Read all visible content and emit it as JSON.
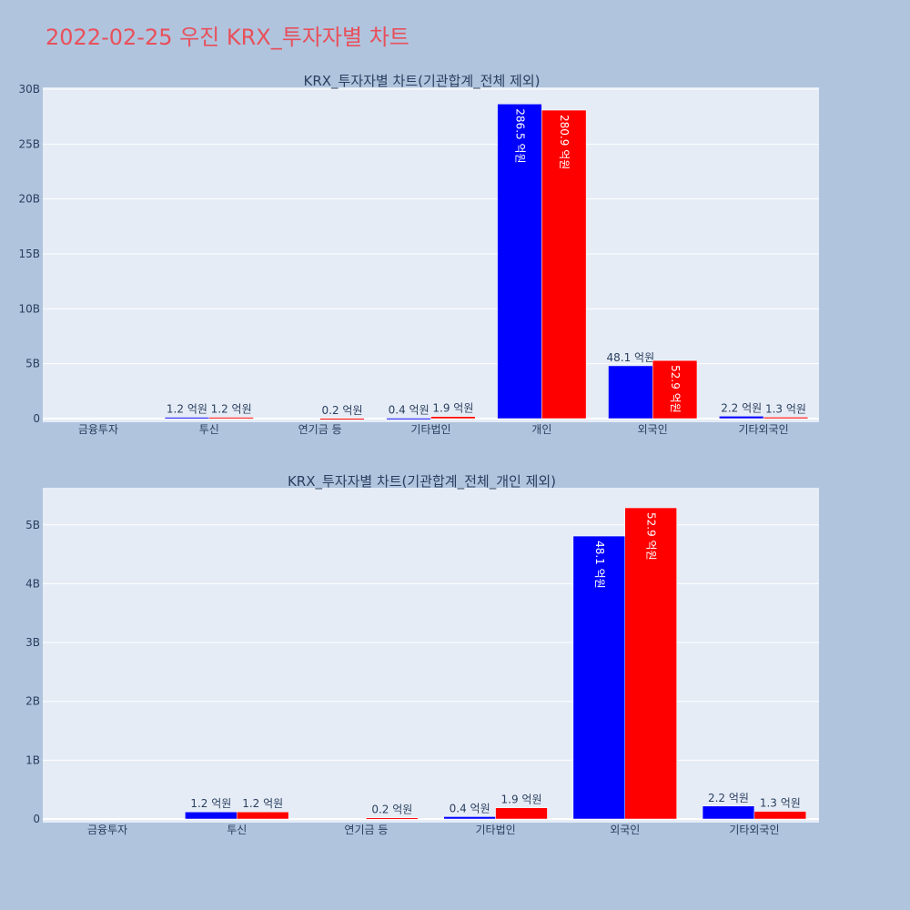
{
  "title": "2022-02-25 우진 KRX_투자자별 차트",
  "colors": {
    "buy": "#0000ff",
    "sell": "#ff0000",
    "plot_bg": "#e5ecf6",
    "page_bg": "#b0c4de",
    "title": "#e8505b"
  },
  "chart_data": [
    {
      "type": "bar",
      "title": "KRX_투자자별 차트(기관합계_전체 제외)",
      "categories": [
        "금융투자",
        "투신",
        "연기금 등",
        "기타법인",
        "개인",
        "외국인",
        "기타외국인"
      ],
      "series": [
        {
          "values": [
            0,
            0.12,
            0,
            0.04,
            28.65,
            4.81,
            0.22
          ],
          "labels": [
            "",
            "1.2 억원",
            "",
            "0.4 억원",
            "286.5 억원",
            "48.1 억원",
            "2.2 억원"
          ]
        },
        {
          "values": [
            0,
            0.12,
            0.02,
            0.19,
            28.09,
            5.29,
            0.13
          ],
          "labels": [
            "",
            "1.2 억원",
            "0.2 억원",
            "1.9 억원",
            "280.9 억원",
            "52.9 억원",
            "1.3 억원"
          ]
        }
      ],
      "ylim": [
        0,
        30
      ],
      "yticks": [
        0,
        5,
        10,
        15,
        20,
        25,
        30
      ],
      "ytick_labels": [
        "0",
        "5B",
        "10B",
        "15B",
        "20B",
        "25B",
        "30B"
      ],
      "grid": true,
      "legend": false
    },
    {
      "type": "bar",
      "title": "KRX_투자자별 차트(기관합계_전체_개인 제외)",
      "categories": [
        "금융투자",
        "투신",
        "연기금 등",
        "기타법인",
        "외국인",
        "기타외국인"
      ],
      "series": [
        {
          "values": [
            0,
            0.12,
            0,
            0.04,
            4.81,
            0.22
          ],
          "labels": [
            "",
            "1.2 억원",
            "",
            "0.4 억원",
            "48.1 억원",
            "2.2 억원"
          ]
        },
        {
          "values": [
            0,
            0.12,
            0.02,
            0.19,
            5.29,
            0.13
          ],
          "labels": [
            "",
            "1.2 억원",
            "0.2 억원",
            "1.9 억원",
            "52.9 억원",
            "1.3 억원"
          ]
        }
      ],
      "ylim": [
        0,
        5.6
      ],
      "yticks": [
        0,
        1,
        2,
        3,
        4,
        5
      ],
      "ytick_labels": [
        "0",
        "1B",
        "2B",
        "3B",
        "4B",
        "5B"
      ],
      "grid": true,
      "legend": false
    }
  ]
}
